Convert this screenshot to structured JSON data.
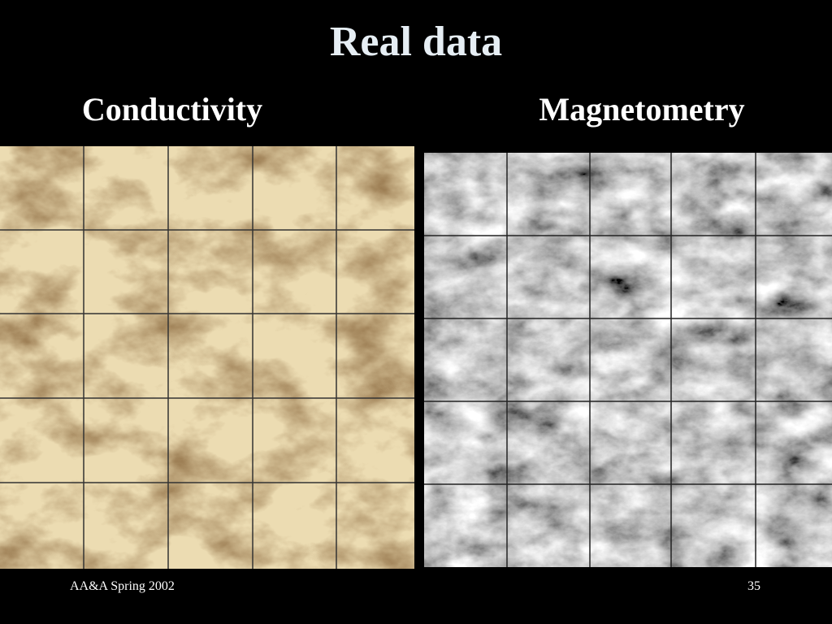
{
  "slide": {
    "title": "Real data",
    "panels": [
      {
        "label": "Conductivity"
      },
      {
        "label": "Magnetometry"
      }
    ],
    "footer": {
      "left": "AA&A Spring 2002",
      "page": "35"
    }
  }
}
